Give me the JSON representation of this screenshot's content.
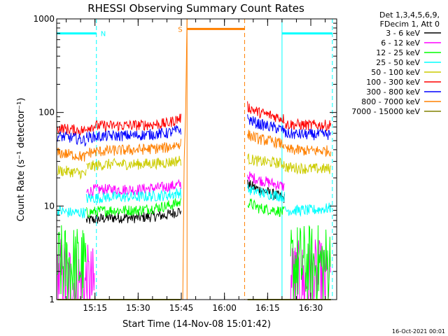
{
  "chart_data": {
    "type": "line",
    "title": "RHESSI Observing Summary Count Rates",
    "xlabel": "Start Time (14-Nov-08 15:01:42)",
    "ylabel": "Count Rate (s⁻¹ detector⁻¹)",
    "y_scale": "log",
    "ylim": [
      1,
      1000
    ],
    "xlim": [
      "15:01:42",
      "16:39:00"
    ],
    "x_ticks": [
      "15:15",
      "15:30",
      "15:45",
      "16:00",
      "16:15",
      "16:30"
    ],
    "y_ticks": [
      "1",
      "10",
      "100",
      "1000"
    ],
    "grid": false,
    "legend": {
      "placement": "top-right",
      "header": [
        "Det 1,3,4,5,6,9,",
        "FDecim 1, Att 0"
      ],
      "entries": [
        {
          "label": "3 - 6 keV",
          "color": "#000000"
        },
        {
          "label": "6 - 12 keV",
          "color": "#ff00ff"
        },
        {
          "label": "12 - 25 keV",
          "color": "#00ff00"
        },
        {
          "label": "25 - 50 keV",
          "color": "#00ffff"
        },
        {
          "label": "50 - 100 keV",
          "color": "#cccc00"
        },
        {
          "label": "100 - 300 keV",
          "color": "#ff0000"
        },
        {
          "label": "300 - 800 keV",
          "color": "#0000ff"
        },
        {
          "label": "800 - 7000 keV",
          "color": "#ff8000"
        },
        {
          "label": "7000 - 15000 keV",
          "color": "#808000"
        }
      ]
    },
    "annotations": [
      {
        "text": "N",
        "color": "#00ffff"
      },
      {
        "text": "S",
        "color": "#ff8000"
      }
    ],
    "night_markers": {
      "color": "#00ffff",
      "solid": [
        "15:01:42",
        "16:20:00"
      ],
      "dashed": [
        "15:15:30",
        "16:37:30"
      ],
      "bars": [
        [
          "15:01:42",
          "15:15:30",
          700
        ],
        [
          "16:20:00",
          "16:37:30",
          700
        ]
      ]
    },
    "saa_markers": {
      "color": "#ff8000",
      "solid": [
        "15:47:00"
      ],
      "dashed": [
        "16:07:00"
      ],
      "bars": [
        [
          "15:47:00",
          "16:07:00",
          780
        ]
      ]
    },
    "series": [
      {
        "name": "3 - 6 keV",
        "color": "#000000",
        "segments": [
          {
            "x": [
              "15:12:00",
              "15:20:00",
              "15:30:00",
              "15:40:00",
              "15:45:00"
            ],
            "y": [
              7,
              7.5,
              7.5,
              8,
              9
            ]
          },
          {
            "x": [
              "16:08:00",
              "16:12:00",
              "16:18:00",
              "16:21:00"
            ],
            "y": [
              17,
              15,
              13,
              12
            ]
          }
        ]
      },
      {
        "name": "6 - 12 keV",
        "color": "#ff00ff",
        "segments": [
          {
            "x": [
              "15:02:00",
              "15:06:00",
              "15:10:00",
              "15:15:00"
            ],
            "y": [
              1.8,
              1.6,
              1.5,
              1.3
            ]
          },
          {
            "x": [
              "15:12:00",
              "15:15:00",
              "15:20:00",
              "15:30:00",
              "15:40:00",
              "15:45:00"
            ],
            "y": [
              14,
              15,
              15,
              15,
              16,
              17
            ]
          },
          {
            "x": [
              "16:08:00",
              "16:12:00",
              "16:18:00",
              "16:21:00"
            ],
            "y": [
              21,
              19,
              17,
              16
            ]
          },
          {
            "x": [
              "16:23:00",
              "16:27:00",
              "16:31:00",
              "16:37:00"
            ],
            "y": [
              1.6,
              1.5,
              1.6,
              1.5
            ]
          }
        ]
      },
      {
        "name": "12 - 25 keV",
        "color": "#00ff00",
        "segments": [
          {
            "x": [
              "15:02:00",
              "15:08:00",
              "15:12:00"
            ],
            "y": [
              2.3,
              2.3,
              2.3
            ]
          },
          {
            "x": [
              "15:12:00",
              "15:20:00",
              "15:30:00",
              "15:40:00",
              "15:45:00"
            ],
            "y": [
              8.5,
              9,
              9,
              10,
              11
            ]
          },
          {
            "x": [
              "16:08:00",
              "16:12:00",
              "16:18:00",
              "16:21:00"
            ],
            "y": [
              11,
              9.5,
              9,
              8.5
            ]
          },
          {
            "x": [
              "16:23:00",
              "16:30:00",
              "16:37:00"
            ],
            "y": [
              2.4,
              2.3,
              2.4
            ]
          }
        ]
      },
      {
        "name": "25 - 50 keV",
        "color": "#00ffff",
        "segments": [
          {
            "x": [
              "15:02:00",
              "15:06:00",
              "15:10:00",
              "15:12:00"
            ],
            "y": [
              9,
              8.5,
              8.5,
              8.5
            ]
          },
          {
            "x": [
              "15:12:00",
              "15:20:00",
              "15:30:00",
              "15:40:00",
              "15:45:00"
            ],
            "y": [
              12,
              12.5,
              12.5,
              13,
              14
            ]
          },
          {
            "x": [
              "16:08:00",
              "16:12:00",
              "16:18:00",
              "16:21:00"
            ],
            "y": [
              15,
              14,
              13,
              12.5
            ]
          },
          {
            "x": [
              "16:21:00",
              "16:30:00",
              "16:37:00"
            ],
            "y": [
              9,
              9,
              9.5
            ]
          }
        ]
      },
      {
        "name": "50 - 100 keV",
        "color": "#cccc00",
        "segments": [
          {
            "x": [
              "15:02:00",
              "15:08:00",
              "15:12:00"
            ],
            "y": [
              24,
              23,
              22
            ]
          },
          {
            "x": [
              "15:12:00",
              "15:15:00",
              "15:20:00",
              "15:30:00",
              "15:40:00",
              "15:45:00"
            ],
            "y": [
              26,
              27,
              28,
              28,
              29,
              31
            ]
          },
          {
            "x": [
              "16:08:00",
              "16:12:00",
              "16:18:00",
              "16:21:00"
            ],
            "y": [
              32,
              30,
              29,
              28
            ]
          },
          {
            "x": [
              "16:21:00",
              "16:30:00",
              "16:37:00"
            ],
            "y": [
              26,
              25,
              25
            ]
          }
        ]
      },
      {
        "name": "100 - 300 keV",
        "color": "#ff0000",
        "segments": [
          {
            "x": [
              "15:02:00",
              "15:08:00",
              "15:12:00"
            ],
            "y": [
              68,
              65,
              64
            ]
          },
          {
            "x": [
              "15:12:00",
              "15:15:00",
              "15:20:00",
              "15:30:00",
              "15:40:00",
              "15:45:00"
            ],
            "y": [
              70,
              72,
              72,
              73,
              76,
              88
            ]
          },
          {
            "x": [
              "16:08:00",
              "16:12:00",
              "16:18:00",
              "16:21:00"
            ],
            "y": [
              115,
              100,
              90,
              85
            ]
          },
          {
            "x": [
              "16:21:00",
              "16:30:00",
              "16:37:00"
            ],
            "y": [
              75,
              73,
              73
            ]
          }
        ]
      },
      {
        "name": "300 - 800 keV",
        "color": "#0000ff",
        "segments": [
          {
            "x": [
              "15:02:00",
              "15:08:00",
              "15:12:00"
            ],
            "y": [
              56,
              53,
              50
            ]
          },
          {
            "x": [
              "15:12:00",
              "15:15:00",
              "15:20:00",
              "15:30:00",
              "15:40:00",
              "15:45:00"
            ],
            "y": [
              54,
              55,
              56,
              57,
              60,
              66
            ]
          },
          {
            "x": [
              "16:08:00",
              "16:12:00",
              "16:18:00",
              "16:21:00"
            ],
            "y": [
              85,
              75,
              68,
              64
            ]
          },
          {
            "x": [
              "16:21:00",
              "16:30:00",
              "16:37:00"
            ],
            "y": [
              59,
              58,
              58
            ]
          }
        ]
      },
      {
        "name": "800 - 7000 keV",
        "color": "#ff8000",
        "segments": [
          {
            "x": [
              "15:02:00",
              "15:08:00",
              "15:12:00"
            ],
            "y": [
              37,
              35,
              33
            ]
          },
          {
            "x": [
              "15:12:00",
              "15:15:00",
              "15:20:00",
              "15:30:00",
              "15:40:00",
              "15:45:00"
            ],
            "y": [
              37,
              38,
              39,
              40,
              42,
              47
            ]
          },
          {
            "x": [
              "16:08:00",
              "16:12:00",
              "16:18:00",
              "16:21:00"
            ],
            "y": [
              58,
              52,
              48,
              45
            ]
          },
          {
            "x": [
              "16:21:00",
              "16:30:00",
              "16:37:00"
            ],
            "y": [
              40,
              39,
              39
            ]
          }
        ]
      },
      {
        "name": "7000 - 15000 keV",
        "color": "#808000",
        "segments": [
          {
            "x": [
              "15:02:00",
              "15:45:00"
            ],
            "y": [
              1,
              1
            ]
          },
          {
            "x": [
              "16:08:00",
              "16:37:00"
            ],
            "y": [
              1,
              1
            ]
          }
        ]
      }
    ],
    "saa_spike": {
      "color": "#ff8000",
      "x": [
        "15:45:30",
        "15:46:00",
        "15:46:30",
        "15:47:00"
      ],
      "y": [
        1,
        30,
        100,
        1000
      ]
    }
  },
  "footer": {
    "timestamp": "16-Oct-2021 00:01"
  }
}
